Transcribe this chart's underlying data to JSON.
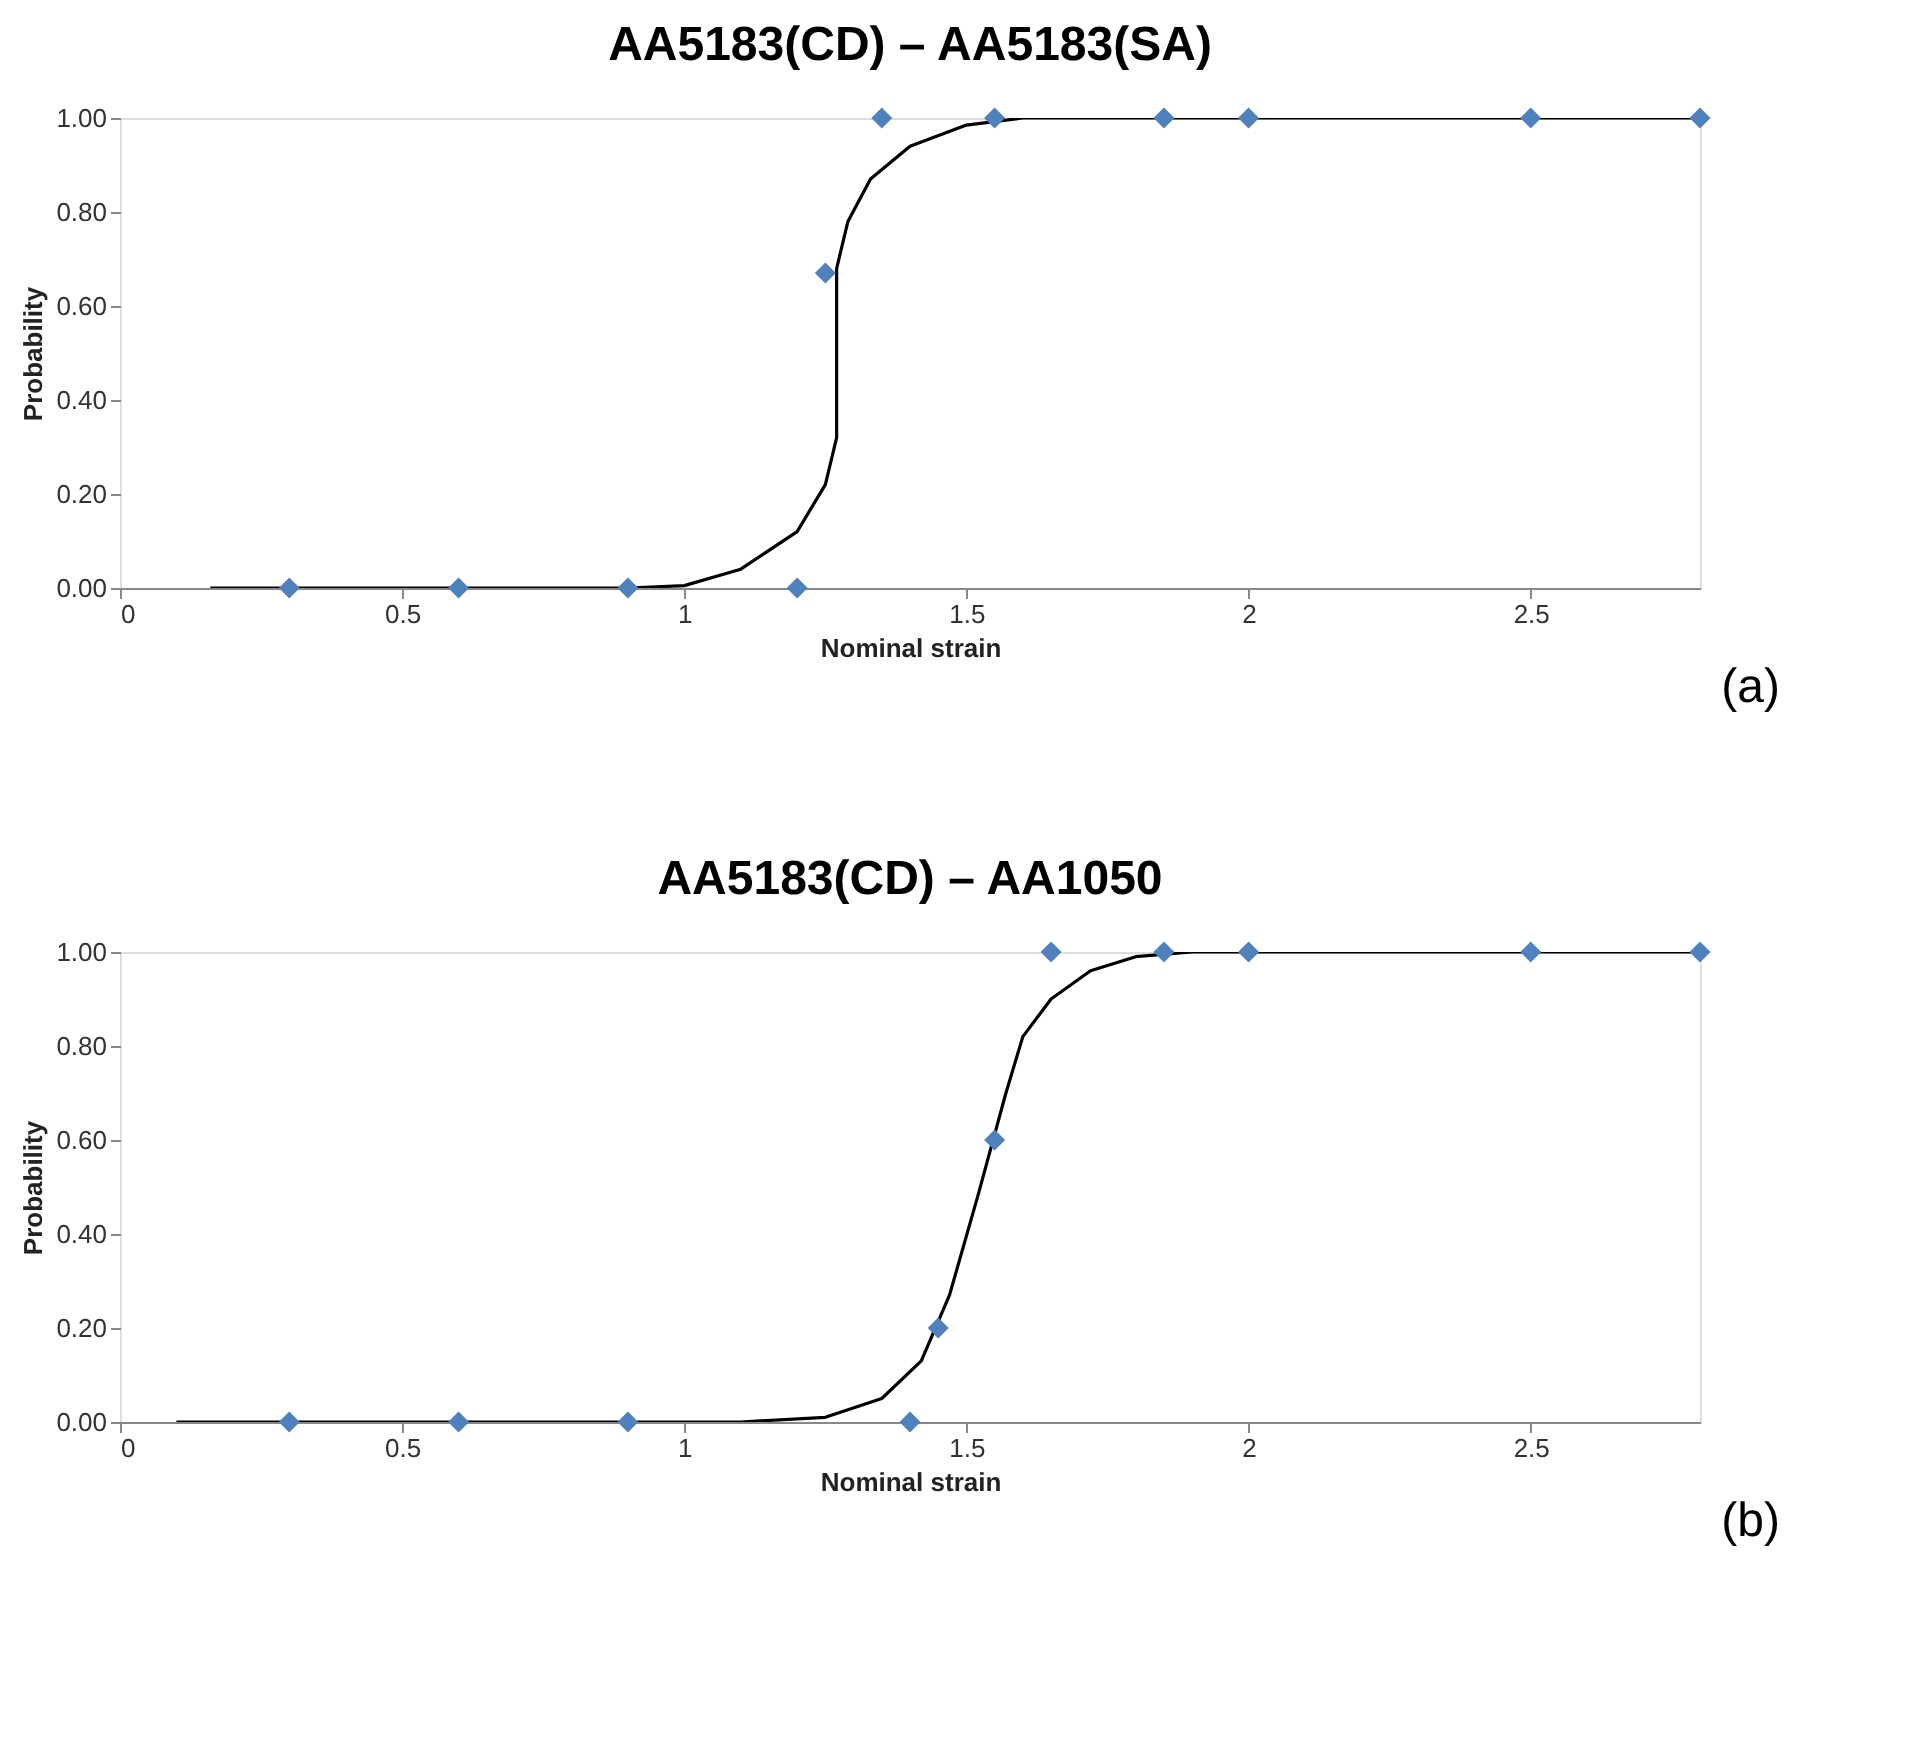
{
  "chart_data": [
    {
      "type": "scatter",
      "title": "AA5183(CD) – AA5183(SA)",
      "xlabel": "Nominal strain",
      "ylabel": "Probability",
      "annotations": [
        "(a)"
      ],
      "marker": "diamond",
      "grid": false,
      "xlim": [
        0,
        2.8
      ],
      "xticks": [
        0,
        0.5,
        1,
        1.5,
        2,
        2.5
      ],
      "ylim": [
        0,
        1
      ],
      "yticks": [
        {
          "value": 0,
          "label": "0.00"
        },
        {
          "value": 0.2,
          "label": "0.20"
        },
        {
          "value": 0.4,
          "label": "0.40"
        },
        {
          "value": 0.6,
          "label": "0.60"
        },
        {
          "value": 0.8,
          "label": "0.80"
        },
        {
          "value": 1,
          "label": "1.00"
        }
      ],
      "series": [
        {
          "type": "line",
          "color": "#000000",
          "marker": "none",
          "x": [
            0.16,
            0.9,
            1.0,
            1.1,
            1.2,
            1.25,
            1.27,
            1.27,
            1.29,
            1.33,
            1.4,
            1.5,
            1.6,
            2.8
          ],
          "values": [
            0,
            0,
            0.005,
            0.04,
            0.12,
            0.22,
            0.32,
            0.68,
            0.78,
            0.87,
            0.94,
            0.985,
            1,
            1
          ]
        },
        {
          "color": "#4f81bd",
          "x": [
            0.3,
            0.6,
            0.9,
            1.2,
            1.25,
            1.35,
            1.55,
            1.85,
            2,
            2.5,
            2.8
          ],
          "values": [
            0,
            0,
            0,
            0,
            0.67,
            1,
            1,
            1,
            1,
            1,
            1
          ]
        }
      ]
    },
    {
      "type": "scatter",
      "title": "AA5183(CD) – AA1050",
      "xlabel": "Nominal strain",
      "ylabel": "Probability",
      "annotations": [
        "(b)"
      ],
      "marker": "diamond",
      "grid": false,
      "xlim": [
        0,
        2.8
      ],
      "xticks": [
        0,
        0.5,
        1,
        1.5,
        2,
        2.5
      ],
      "ylim": [
        0,
        1
      ],
      "yticks": [
        {
          "value": 0,
          "label": "0.00"
        },
        {
          "value": 0.2,
          "label": "0.20"
        },
        {
          "value": 0.4,
          "label": "0.40"
        },
        {
          "value": 0.6,
          "label": "0.60"
        },
        {
          "value": 0.8,
          "label": "0.80"
        },
        {
          "value": 1,
          "label": "1.00"
        }
      ],
      "series": [
        {
          "type": "line",
          "color": "#000000",
          "marker": "none",
          "x": [
            0.1,
            1.1,
            1.25,
            1.35,
            1.42,
            1.47,
            1.52,
            1.57,
            1.6,
            1.65,
            1.72,
            1.8,
            1.9,
            2.8
          ],
          "values": [
            0,
            0,
            0.01,
            0.05,
            0.13,
            0.27,
            0.48,
            0.7,
            0.82,
            0.9,
            0.96,
            0.99,
            1,
            1
          ]
        },
        {
          "color": "#4f81bd",
          "x": [
            0.3,
            0.6,
            0.9,
            1.4,
            1.45,
            1.55,
            1.65,
            1.85,
            2,
            2.5,
            2.8
          ],
          "values": [
            0,
            0,
            0,
            0,
            0.2,
            0.6,
            1,
            1,
            1,
            1,
            1
          ]
        }
      ]
    }
  ]
}
